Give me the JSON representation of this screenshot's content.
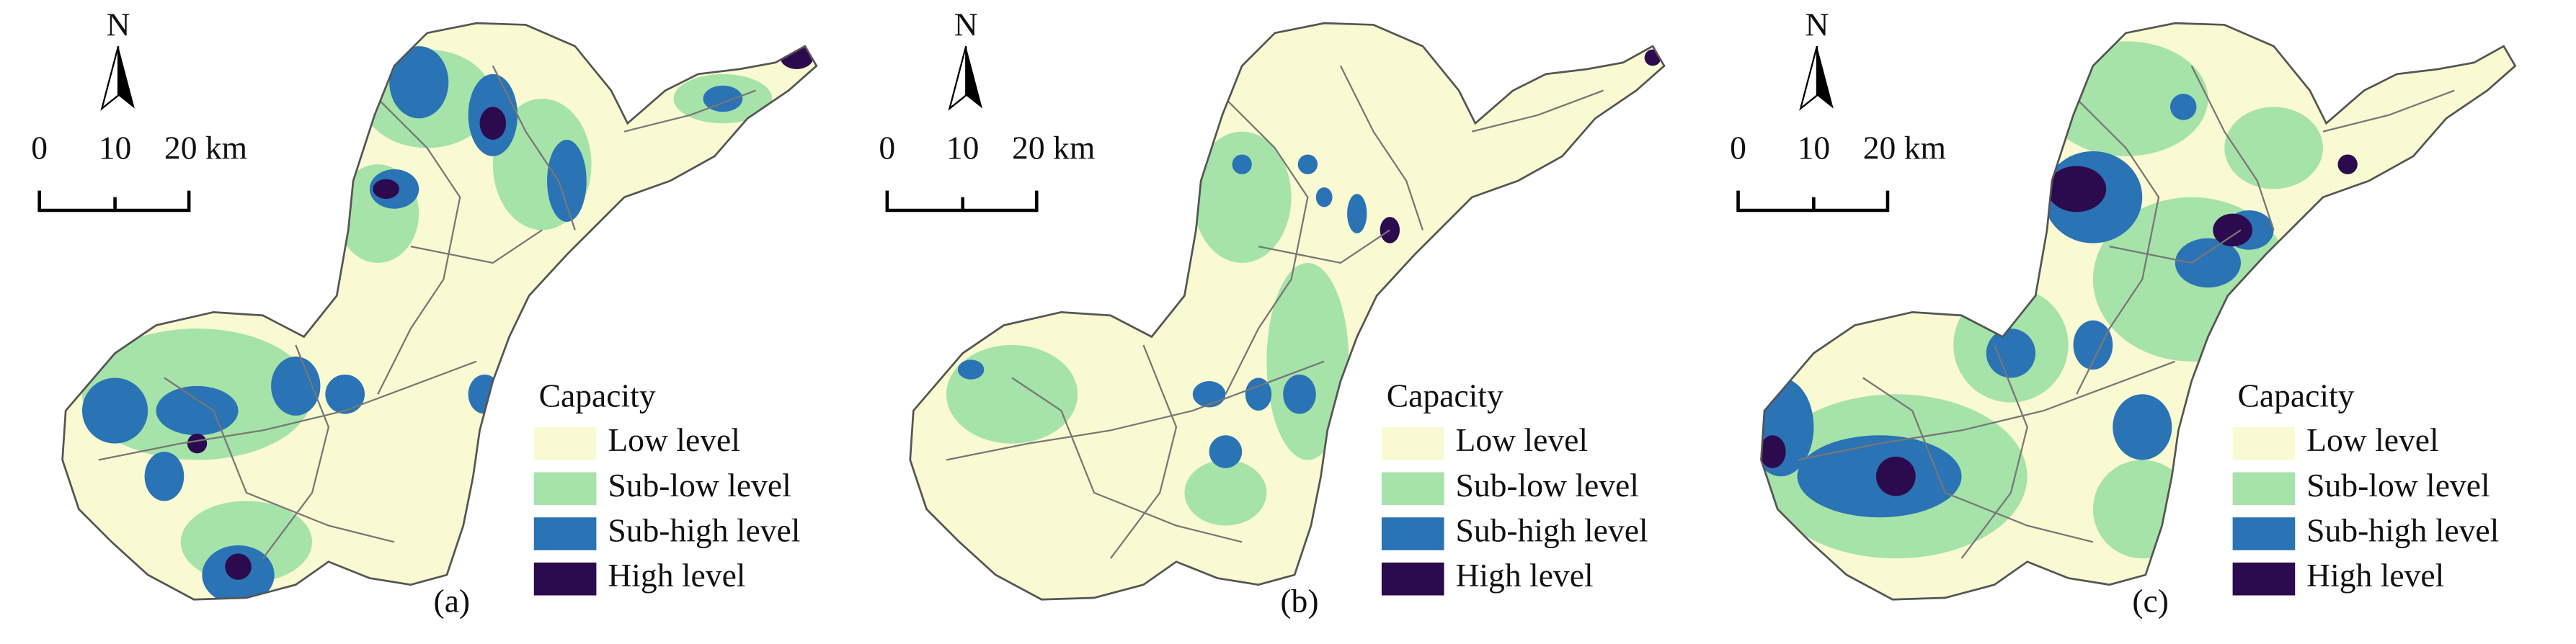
{
  "panels": [
    {
      "label": "(a)",
      "north": "N",
      "scale": [
        "0",
        "10",
        "20 km"
      ],
      "legend": {
        "title": "Capacity",
        "items": [
          {
            "name": "Low level",
            "color": "#fafad2"
          },
          {
            "name": "Sub-low level",
            "color": "#a6e3a9"
          },
          {
            "name": "Sub-high level",
            "color": "#2a73b5"
          },
          {
            "name": "High level",
            "color": "#2b0a4d"
          }
        ]
      }
    },
    {
      "label": "(b)",
      "north": "N",
      "scale": [
        "0",
        "10",
        "20 km"
      ],
      "legend": {
        "title": "Capacity",
        "items": [
          {
            "name": "Low level",
            "color": "#fafad2"
          },
          {
            "name": "Sub-low level",
            "color": "#a6e3a9"
          },
          {
            "name": "Sub-high level",
            "color": "#2a73b5"
          },
          {
            "name": "High level",
            "color": "#2b0a4d"
          }
        ]
      }
    },
    {
      "label": "(c)",
      "north": "N",
      "scale": [
        "0",
        "10",
        "20 km"
      ],
      "legend": {
        "title": "Capacity",
        "items": [
          {
            "name": "Low level",
            "color": "#fafad2"
          },
          {
            "name": "Sub-low level",
            "color": "#a6e3a9"
          },
          {
            "name": "Sub-high level",
            "color": "#2a73b5"
          },
          {
            "name": "High level",
            "color": "#2b0a4d"
          }
        ]
      }
    }
  ]
}
